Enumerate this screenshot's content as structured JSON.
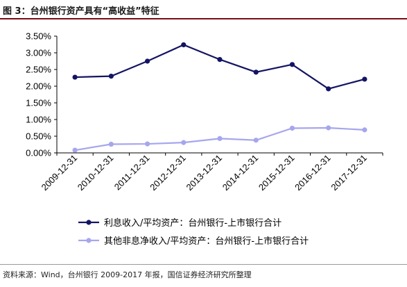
{
  "figure": {
    "title": "图 3：台州银行资产具有“高收益”特征",
    "source": "资料来源：Wind，台州银行 2009-2017 年报，国信证券经济研究所整理"
  },
  "chart_data": {
    "type": "line",
    "categories": [
      "2009-12-31",
      "2010-12-31",
      "2011-12-31",
      "2012-12-31",
      "2013-12-31",
      "2014-12-31",
      "2015-12-31",
      "2016-12-31",
      "2017-12-31"
    ],
    "series": [
      {
        "name": "利息收入/平均资产：台州银行-上市银行合计",
        "color": "#141464",
        "values": [
          2.27,
          2.3,
          2.75,
          3.24,
          2.8,
          2.42,
          2.65,
          1.92,
          2.21
        ]
      },
      {
        "name": "其他非息净收入/平均资产：台州银行-上市银行合计",
        "color": "#a6a6ee",
        "values": [
          0.08,
          0.26,
          0.27,
          0.31,
          0.43,
          0.38,
          0.74,
          0.75,
          0.69
        ]
      }
    ],
    "yticks": [
      "0.00%",
      "0.50%",
      "1.00%",
      "1.50%",
      "2.00%",
      "2.50%",
      "3.00%",
      "3.50%"
    ],
    "ylim": [
      0,
      3.5
    ],
    "xlabel": "",
    "ylabel": "",
    "grid": false,
    "legend_position": "bottom"
  }
}
